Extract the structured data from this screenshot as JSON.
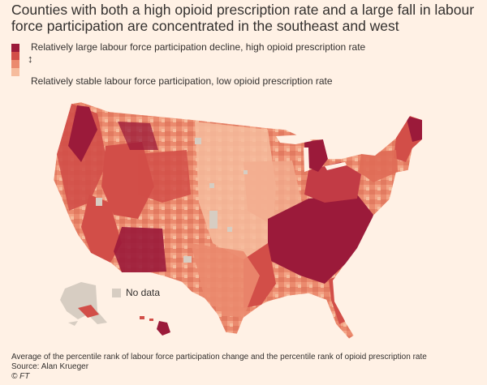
{
  "title": "Counties with both a high opioid prescription rate and a large fall in labour force participation are concentrated in the southeast and west",
  "legend": {
    "high_label": "Relatively large labour force participation decline, high opioid prescription rate",
    "low_label": "Relatively stable labour force participation, low opioid prescription rate",
    "arrow_glyph": "↕",
    "scale_colors": [
      "#9b1a3a",
      "#d24e48",
      "#eb8a6e",
      "#f6bc9d"
    ],
    "no_data_label": "No data",
    "no_data_color": "#d7cdc2"
  },
  "footer": {
    "note": "Average of the percentile rank of labour force participation change and the percentile rank of opioid prescription rate",
    "source": "Source: Alan Krueger",
    "copyright": "© FT"
  },
  "colors": {
    "background": "#fff1e5",
    "darkest": "#9b1a3a",
    "dark": "#d24e48",
    "mid": "#eb8a6e",
    "light": "#f6bc9d",
    "nodata": "#d7cdc2"
  }
}
